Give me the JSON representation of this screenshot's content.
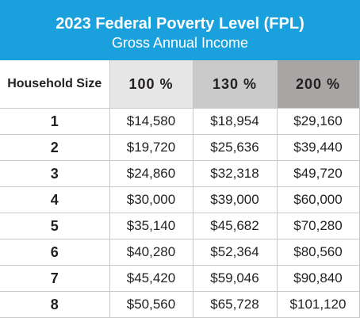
{
  "header": {
    "title": "2023 Federal Poverty Level (FPL)",
    "subtitle": "Gross Annual Income"
  },
  "colors": {
    "banner": "#1aa0dd",
    "col_100": "#e6e6e6",
    "col_130": "#cacaca",
    "col_200": "#a7a6a5"
  },
  "table": {
    "column_headers": [
      "Household Size",
      "100 %",
      "130 %",
      "200 %"
    ],
    "rows": [
      {
        "size": "1",
        "p100": "$14,580",
        "p130": "$18,954",
        "p200": "$29,160"
      },
      {
        "size": "2",
        "p100": "$19,720",
        "p130": "$25,636",
        "p200": "$39,440"
      },
      {
        "size": "3",
        "p100": "$24,860",
        "p130": "$32,318",
        "p200": "$49,720"
      },
      {
        "size": "4",
        "p100": "$30,000",
        "p130": "$39,000",
        "p200": "$60,000"
      },
      {
        "size": "5",
        "p100": "$35,140",
        "p130": "$45,682",
        "p200": "$70,280"
      },
      {
        "size": "6",
        "p100": "$40,280",
        "p130": "$52,364",
        "p200": "$80,560"
      },
      {
        "size": "7",
        "p100": "$45,420",
        "p130": "$59,046",
        "p200": "$90,840"
      },
      {
        "size": "8",
        "p100": "$50,560",
        "p130": "$65,728",
        "p200": "$101,120"
      }
    ]
  }
}
